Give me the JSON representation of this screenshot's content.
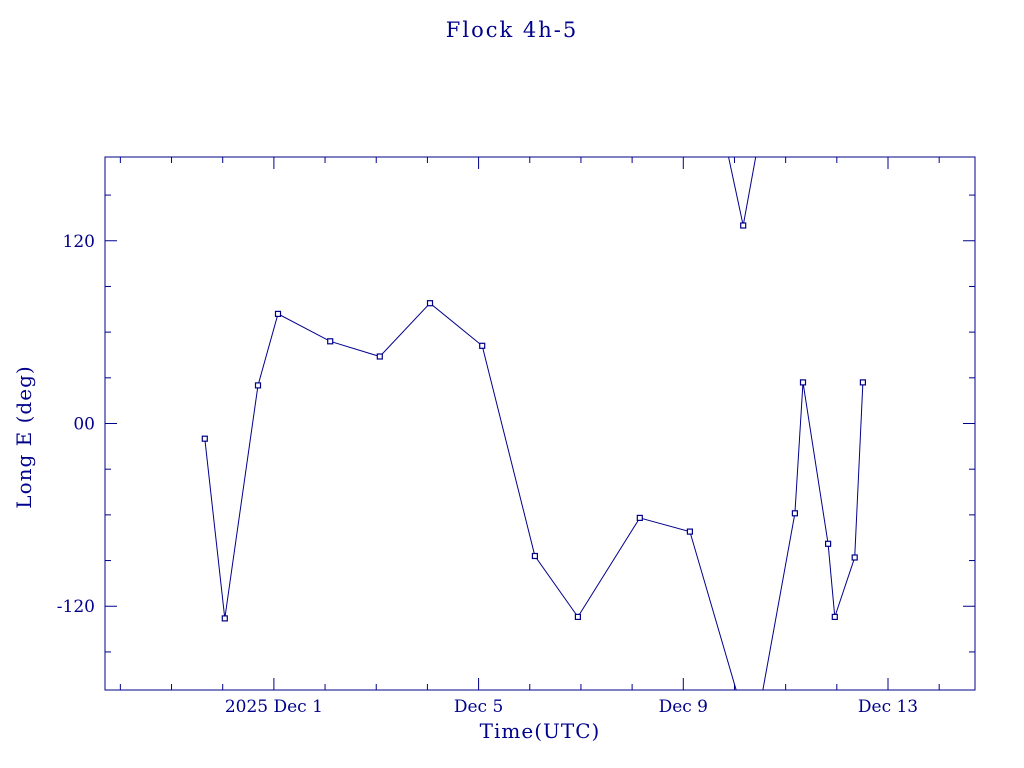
{
  "chart_data": {
    "type": "line",
    "title": "Flock 4h-5",
    "xlabel": "Time(UTC)",
    "ylabel": "Long E (deg)",
    "x_axis_note": "x values are day-of-December-2025 (Dec 1 = 1, fractional days)",
    "xlim": [
      -2.3,
      14.7
    ],
    "ylim": [
      -175,
      175
    ],
    "grid": false,
    "legend": "none",
    "colors": {
      "line": "#00008b",
      "marker": "#00008b",
      "background": "#ffffff"
    },
    "x_major_ticks": [
      {
        "t": 1,
        "label": "2025 Dec 1"
      },
      {
        "t": 5,
        "label": "Dec 5"
      },
      {
        "t": 9,
        "label": "Dec 9"
      },
      {
        "t": 13,
        "label": "Dec 13"
      }
    ],
    "y_major_ticks": [
      {
        "v": 120,
        "label": "120"
      },
      {
        "v": 0,
        "label": "00"
      },
      {
        "v": -120,
        "label": "-120"
      }
    ],
    "x_minor_step": 1,
    "y_minor_step": 30,
    "marker_points": [
      [
        -0.35,
        -10
      ],
      [
        0.04,
        -128
      ],
      [
        0.69,
        25
      ],
      [
        1.08,
        72
      ],
      [
        2.1,
        54
      ],
      [
        3.07,
        44
      ],
      [
        4.05,
        79
      ],
      [
        5.07,
        51
      ],
      [
        6.1,
        -87
      ],
      [
        6.94,
        -127
      ],
      [
        8.15,
        -62
      ],
      [
        9.13,
        -71
      ],
      [
        10.17,
        130
      ],
      [
        11.18,
        -59
      ],
      [
        11.34,
        27
      ],
      [
        11.83,
        -79
      ],
      [
        11.96,
        -127
      ],
      [
        12.35,
        -88
      ],
      [
        12.51,
        27
      ]
    ],
    "line_segments": [
      [
        [
          -0.35,
          -10
        ],
        [
          0.04,
          -128
        ],
        [
          0.69,
          25
        ],
        [
          1.08,
          72
        ],
        [
          2.1,
          54
        ],
        [
          3.07,
          44
        ],
        [
          4.05,
          79
        ],
        [
          5.07,
          51
        ],
        [
          6.1,
          -87
        ],
        [
          6.94,
          -127
        ],
        [
          8.15,
          -62
        ],
        [
          9.13,
          -71
        ],
        [
          10.12,
          -185
        ]
      ],
      [
        [
          9.82,
          185
        ],
        [
          10.17,
          130
        ],
        [
          10.47,
          185
        ]
      ],
      [
        [
          10.5,
          -185
        ],
        [
          11.18,
          -59
        ],
        [
          11.34,
          27
        ],
        [
          11.83,
          -79
        ],
        [
          11.96,
          -127
        ],
        [
          12.35,
          -88
        ],
        [
          12.51,
          27
        ]
      ]
    ]
  }
}
